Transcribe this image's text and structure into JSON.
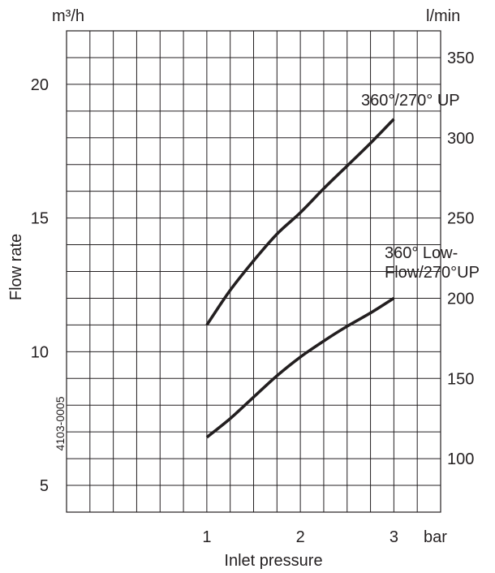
{
  "chart_data": {
    "type": "line",
    "left_unit": "m³/h",
    "right_unit": "l/min",
    "x_unit": "bar",
    "xlabel": "Inlet pressure",
    "ylabel": "Flow rate",
    "code": "4103-0005",
    "xlim": [
      -0.5,
      3.5
    ],
    "ylim": [
      4,
      22
    ],
    "x_ticks": [
      {
        "value": 1,
        "label": "1"
      },
      {
        "value": 2,
        "label": "2"
      },
      {
        "value": 3,
        "label": "3"
      }
    ],
    "y_ticks_left": [
      {
        "value": 5,
        "label": "5"
      },
      {
        "value": 10,
        "label": "10"
      },
      {
        "value": 15,
        "label": "15"
      },
      {
        "value": 20,
        "label": "20"
      }
    ],
    "y_ticks_right": [
      {
        "value": 6,
        "label": "100"
      },
      {
        "value": 9,
        "label": "150"
      },
      {
        "value": 12,
        "label": "200"
      },
      {
        "value": 15,
        "label": "250"
      },
      {
        "value": 18,
        "label": "300"
      },
      {
        "value": 21,
        "label": "350"
      }
    ],
    "grid": true,
    "series": [
      {
        "name": "360°/270° UP",
        "label_lines": [
          "360°/270° UP"
        ],
        "x": [
          1,
          1.25,
          1.5,
          1.75,
          2,
          2.25,
          2.5,
          2.75,
          3
        ],
        "y": [
          11.0,
          12.3,
          13.4,
          14.4,
          15.2,
          16.1,
          16.95,
          17.8,
          18.7
        ]
      },
      {
        "name": "360° Low-Flow/270°UP",
        "label_lines": [
          "360° Low-",
          "Flow/270°UP"
        ],
        "x": [
          1,
          1.25,
          1.5,
          1.75,
          2,
          2.25,
          2.5,
          2.75,
          3
        ],
        "y": [
          6.8,
          7.5,
          8.3,
          9.1,
          9.8,
          10.4,
          10.95,
          11.45,
          12.0
        ]
      }
    ]
  }
}
